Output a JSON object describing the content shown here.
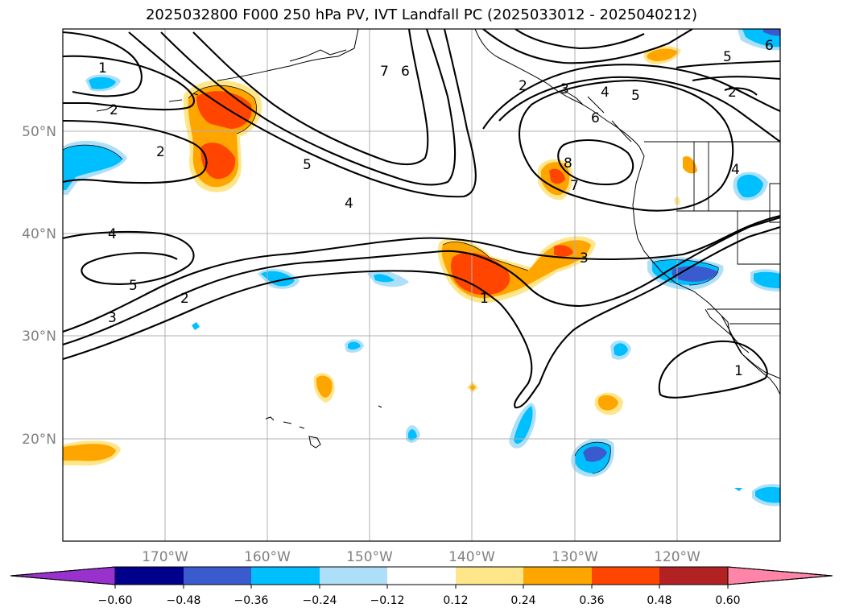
{
  "title": "2025032800 F000 250 hPa PV, IVT Landfall PC (2025033012 - 2025040212)",
  "lat_labels": [
    "50°N",
    "40°N",
    "30°N",
    "20°N"
  ],
  "lon_labels": [
    "170°W",
    "160°W",
    "150°W",
    "140°W",
    "130°W",
    "120°W"
  ],
  "colorbar": {
    "ticks": [
      "−0.60",
      "−0.48",
      "−0.36",
      "−0.24",
      "−0.12",
      "0.12",
      "0.24",
      "0.36",
      "0.48",
      "0.60"
    ],
    "colors": [
      "#9932CC",
      "#00008B",
      "#3A5BCD",
      "#00BFFF",
      "#ADE0F8",
      "#FFFFFF",
      "#FFE68A",
      "#FFA500",
      "#FF4500",
      "#B22222",
      "#FF85A8"
    ]
  },
  "contour_labels": [
    "1",
    "2",
    "5",
    "2",
    "4",
    "7",
    "6",
    "2",
    "3",
    "4",
    "5",
    "6",
    "8",
    "7",
    "5",
    "2",
    "4",
    "3",
    "1",
    "4",
    "5",
    "2",
    "3",
    "1",
    "6"
  ]
}
